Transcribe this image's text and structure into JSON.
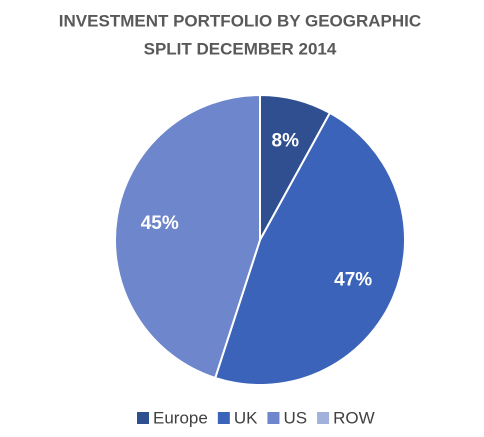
{
  "chart_data": {
    "type": "pie",
    "title_lines": [
      "INVESTMENT PORTFOLIO BY GEOGRAPHIC",
      "SPLIT DECEMBER 2014"
    ],
    "categories": [
      "Europe",
      "UK",
      "US",
      "ROW"
    ],
    "values": [
      8,
      47,
      45,
      0
    ],
    "value_labels": [
      "8%",
      "47%",
      "45%",
      null
    ],
    "colors": [
      "#2f4f91",
      "#3b63b9",
      "#6e86cb",
      "#a2b0dc"
    ],
    "legend": "bottom"
  }
}
